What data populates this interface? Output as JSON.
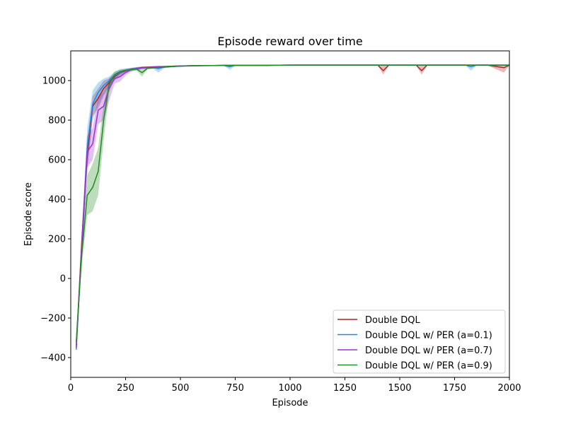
{
  "chart_data": {
    "type": "line",
    "title": "Episode reward over time",
    "xlabel": "Episode",
    "ylabel": "Episode score",
    "xlim": [
      0,
      2000
    ],
    "ylim": [
      -500,
      1150
    ],
    "xticks": [
      0,
      250,
      500,
      750,
      1000,
      1250,
      1500,
      1750,
      2000
    ],
    "yticks": [
      -400,
      -200,
      0,
      200,
      400,
      600,
      800,
      1000
    ],
    "ytick_labels": [
      "−400",
      "−200",
      "0",
      "200",
      "400",
      "600",
      "800",
      "1000"
    ],
    "grid": false,
    "legend_position": "lower-right",
    "x": [
      25,
      50,
      75,
      100,
      125,
      150,
      175,
      200,
      225,
      250,
      275,
      300,
      325,
      350,
      375,
      400,
      425,
      450,
      500,
      550,
      600,
      650,
      700,
      725,
      750,
      800,
      900,
      1000,
      1075,
      1100,
      1200,
      1300,
      1400,
      1425,
      1450,
      1500,
      1575,
      1600,
      1625,
      1700,
      1800,
      1825,
      1850,
      1900,
      1975,
      2000
    ],
    "series": [
      {
        "name": "Double DQL",
        "color": "#b22222",
        "values": [
          -340,
          180,
          620,
          870,
          910,
          960,
          990,
          1020,
          1040,
          1050,
          1058,
          1062,
          1066,
          1068,
          1069,
          1070,
          1071,
          1072,
          1074,
          1075,
          1076,
          1076,
          1077,
          1077,
          1077,
          1077,
          1077,
          1078,
          1078,
          1078,
          1078,
          1078,
          1078,
          1050,
          1078,
          1078,
          1078,
          1050,
          1078,
          1078,
          1078,
          1078,
          1078,
          1078,
          1065,
          1078
        ],
        "lower": [
          -360,
          120,
          540,
          820,
          860,
          920,
          970,
          1005,
          1030,
          1042,
          1050,
          1056,
          1060,
          1063,
          1065,
          1066,
          1068,
          1069,
          1071,
          1073,
          1074,
          1074,
          1075,
          1075,
          1075,
          1075,
          1075,
          1076,
          1076,
          1076,
          1076,
          1076,
          1076,
          1030,
          1076,
          1076,
          1076,
          1030,
          1076,
          1076,
          1076,
          1076,
          1076,
          1076,
          1040,
          1076
        ],
        "upper": [
          -320,
          240,
          700,
          920,
          960,
          1000,
          1010,
          1035,
          1050,
          1058,
          1064,
          1068,
          1071,
          1072,
          1073,
          1074,
          1074,
          1075,
          1077,
          1077,
          1078,
          1078,
          1079,
          1079,
          1079,
          1079,
          1079,
          1080,
          1080,
          1080,
          1080,
          1080,
          1080,
          1075,
          1080,
          1080,
          1080,
          1075,
          1080,
          1080,
          1080,
          1080,
          1080,
          1080,
          1078,
          1080
        ]
      },
      {
        "name": "Double DQL w/ PER (a=0.1)",
        "color": "#1e88e5",
        "values": [
          -360,
          150,
          660,
          880,
          940,
          975,
          1000,
          1025,
          1042,
          1052,
          1058,
          1062,
          1064,
          1066,
          1066,
          1060,
          1068,
          1070,
          1073,
          1074,
          1075,
          1076,
          1076,
          1070,
          1077,
          1077,
          1077,
          1078,
          1078,
          1078,
          1078,
          1078,
          1078,
          1078,
          1078,
          1078,
          1078,
          1078,
          1078,
          1078,
          1078,
          1070,
          1078,
          1078,
          1078,
          1078
        ],
        "lower": [
          -380,
          80,
          560,
          800,
          880,
          930,
          970,
          1000,
          1020,
          1040,
          1050,
          1055,
          1058,
          1060,
          1060,
          1040,
          1062,
          1065,
          1069,
          1071,
          1072,
          1073,
          1073,
          1055,
          1074,
          1075,
          1075,
          1076,
          1076,
          1076,
          1076,
          1076,
          1076,
          1076,
          1076,
          1076,
          1076,
          1076,
          1076,
          1076,
          1076,
          1050,
          1076,
          1076,
          1076,
          1076
        ],
        "upper": [
          -340,
          220,
          760,
          950,
          990,
          1010,
          1020,
          1045,
          1058,
          1062,
          1064,
          1068,
          1070,
          1071,
          1071,
          1070,
          1073,
          1074,
          1076,
          1077,
          1078,
          1078,
          1079,
          1078,
          1079,
          1079,
          1079,
          1080,
          1080,
          1080,
          1080,
          1080,
          1080,
          1080,
          1080,
          1080,
          1080,
          1080,
          1080,
          1080,
          1080,
          1078,
          1080,
          1080,
          1080,
          1080
        ]
      },
      {
        "name": "Double DQL w/ PER (a=0.7)",
        "color": "#9b30d9",
        "values": [
          -350,
          160,
          640,
          680,
          850,
          870,
          960,
          1010,
          1020,
          1040,
          1055,
          1060,
          1064,
          1066,
          1068,
          1069,
          1070,
          1071,
          1073,
          1075,
          1076,
          1076,
          1077,
          1077,
          1077,
          1077,
          1077,
          1078,
          1078,
          1078,
          1078,
          1078,
          1078,
          1078,
          1078,
          1078,
          1078,
          1078,
          1078,
          1078,
          1078,
          1078,
          1078,
          1078,
          1078,
          1078
        ],
        "lower": [
          -370,
          100,
          560,
          600,
          780,
          800,
          900,
          985,
          995,
          1025,
          1045,
          1052,
          1058,
          1061,
          1064,
          1065,
          1066,
          1068,
          1071,
          1073,
          1074,
          1074,
          1075,
          1075,
          1075,
          1075,
          1075,
          1076,
          1076,
          1076,
          1076,
          1076,
          1076,
          1076,
          1076,
          1076,
          1076,
          1076,
          1076,
          1076,
          1076,
          1076,
          1076,
          1076,
          1076,
          1076
        ],
        "upper": [
          -330,
          220,
          720,
          760,
          920,
          940,
          1010,
          1030,
          1042,
          1055,
          1062,
          1066,
          1069,
          1070,
          1071,
          1072,
          1073,
          1074,
          1075,
          1077,
          1078,
          1078,
          1079,
          1079,
          1079,
          1079,
          1079,
          1080,
          1080,
          1080,
          1080,
          1080,
          1080,
          1080,
          1080,
          1080,
          1080,
          1080,
          1080,
          1080,
          1080,
          1080,
          1080,
          1080,
          1080,
          1080
        ]
      },
      {
        "name": "Double DQL w/ PER (a=0.9)",
        "color": "#228b22",
        "values": [
          -320,
          120,
          420,
          460,
          540,
          800,
          980,
          1030,
          1045,
          1052,
          1055,
          1058,
          1040,
          1062,
          1064,
          1066,
          1068,
          1070,
          1073,
          1075,
          1076,
          1076,
          1077,
          1077,
          1077,
          1077,
          1077,
          1078,
          1078,
          1078,
          1078,
          1078,
          1078,
          1078,
          1078,
          1078,
          1078,
          1078,
          1078,
          1078,
          1078,
          1078,
          1078,
          1078,
          1078,
          1078
        ],
        "lower": [
          -340,
          60,
          320,
          340,
          420,
          700,
          940,
          1015,
          1035,
          1045,
          1048,
          1052,
          1020,
          1057,
          1060,
          1062,
          1064,
          1067,
          1071,
          1073,
          1074,
          1074,
          1075,
          1075,
          1075,
          1075,
          1075,
          1076,
          1076,
          1076,
          1076,
          1076,
          1076,
          1076,
          1076,
          1076,
          1076,
          1076,
          1076,
          1076,
          1076,
          1076,
          1076,
          1076,
          1076,
          1076
        ],
        "upper": [
          -300,
          180,
          520,
          580,
          660,
          880,
          1010,
          1045,
          1055,
          1058,
          1062,
          1064,
          1056,
          1068,
          1069,
          1070,
          1071,
          1073,
          1075,
          1077,
          1078,
          1078,
          1079,
          1079,
          1079,
          1079,
          1079,
          1080,
          1080,
          1080,
          1080,
          1080,
          1080,
          1080,
          1080,
          1080,
          1080,
          1080,
          1080,
          1080,
          1080,
          1080,
          1080,
          1080,
          1080,
          1080
        ]
      }
    ]
  }
}
